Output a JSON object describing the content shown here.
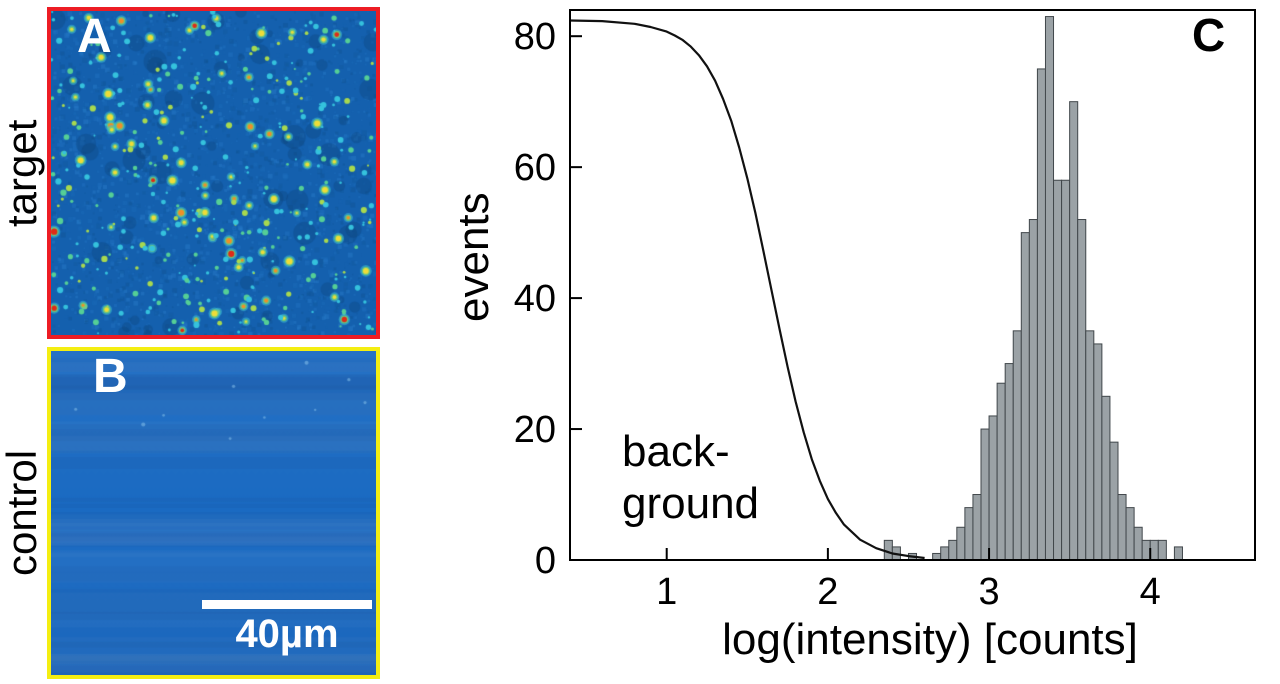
{
  "figure": {
    "panel_a": {
      "label": "A",
      "row_label": "target",
      "border_color": "#ed1c24"
    },
    "panel_b": {
      "label": "B",
      "row_label": "control",
      "border_color": "#f4ee12",
      "scale_bar_label": "40µm"
    },
    "panel_c": {
      "label": "C"
    }
  },
  "chart_data": {
    "type": "histogram",
    "title": "",
    "xlabel": "log(intensity) [counts]",
    "ylabel": "events",
    "xlim": [
      0.4,
      4.65
    ],
    "ylim": [
      0,
      84
    ],
    "xticks": [
      1,
      2,
      3,
      4
    ],
    "yticks": [
      0,
      20,
      40,
      60,
      80
    ],
    "grid": false,
    "annotation": {
      "lines": [
        "back-",
        "ground"
      ]
    },
    "histogram": {
      "bin_width": 0.05,
      "fill": "#9ba2a6",
      "stroke": "#41474b",
      "bin_left_edges": [
        2.35,
        2.4,
        2.45,
        2.5,
        2.55,
        2.6,
        2.65,
        2.7,
        2.75,
        2.8,
        2.85,
        2.9,
        2.95,
        3.0,
        3.05,
        3.1,
        3.15,
        3.2,
        3.25,
        3.3,
        3.35,
        3.4,
        3.45,
        3.5,
        3.55,
        3.6,
        3.65,
        3.7,
        3.75,
        3.8,
        3.85,
        3.9,
        3.95,
        4.0,
        4.05,
        4.1,
        4.15
      ],
      "counts": [
        3,
        2,
        0,
        1,
        0,
        0,
        1,
        2,
        3,
        5,
        8,
        10,
        20,
        22,
        27,
        30,
        35,
        50,
        52,
        75,
        83,
        58,
        58,
        70,
        52,
        35,
        33,
        25,
        18,
        10,
        8,
        5,
        3,
        3,
        3,
        0,
        2
      ]
    },
    "background_curve": {
      "name": "background",
      "color": "#111111",
      "points": [
        [
          0.4,
          82.4
        ],
        [
          0.6,
          82.3
        ],
        [
          0.8,
          81.9
        ],
        [
          0.9,
          81.4
        ],
        [
          1.0,
          80.7
        ],
        [
          1.05,
          80.1
        ],
        [
          1.1,
          79.4
        ],
        [
          1.15,
          78.4
        ],
        [
          1.2,
          77.1
        ],
        [
          1.25,
          75.4
        ],
        [
          1.3,
          73.2
        ],
        [
          1.35,
          70.4
        ],
        [
          1.4,
          67.1
        ],
        [
          1.45,
          63.0
        ],
        [
          1.5,
          58.3
        ],
        [
          1.55,
          53.0
        ],
        [
          1.6,
          47.2
        ],
        [
          1.65,
          41.2
        ],
        [
          1.7,
          35.3
        ],
        [
          1.75,
          29.5
        ],
        [
          1.8,
          24.2
        ],
        [
          1.85,
          19.5
        ],
        [
          1.9,
          15.4
        ],
        [
          1.95,
          12.1
        ],
        [
          2.0,
          9.3
        ],
        [
          2.05,
          7.2
        ],
        [
          2.1,
          5.4
        ],
        [
          2.2,
          3.1
        ],
        [
          2.3,
          1.8
        ],
        [
          2.4,
          1.0
        ],
        [
          2.5,
          0.6
        ],
        [
          2.6,
          0.3
        ]
      ]
    }
  }
}
